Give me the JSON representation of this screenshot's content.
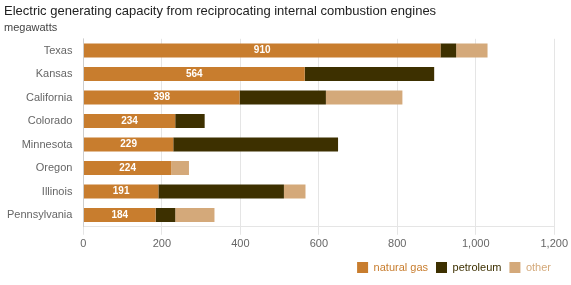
{
  "chart_data": {
    "type": "bar",
    "orientation": "horizontal",
    "stacked": true,
    "title": "Electric generating capacity from reciprocating internal combustion engines",
    "subtitle": "megawatts",
    "categories": [
      "Pennsylvania",
      "Illinois",
      "Oregon",
      "Minnesota",
      "Colorado",
      "California",
      "Kansas",
      "Texas"
    ],
    "series": [
      {
        "name": "natural gas",
        "color": "#c87d2e",
        "values": [
          184,
          191,
          224,
          229,
          234,
          398,
          564,
          910
        ],
        "data_labels": true
      },
      {
        "name": "petroleum",
        "color": "#3d3000",
        "values": [
          50,
          320,
          0,
          420,
          75,
          220,
          330,
          40
        ]
      },
      {
        "name": "other",
        "color": "#d4a97a",
        "values": [
          100,
          55,
          45,
          0,
          0,
          195,
          0,
          80
        ]
      }
    ],
    "xlim": [
      0,
      1200
    ],
    "xticks": [
      0,
      200,
      400,
      600,
      800,
      {
        "value": 1000,
        "label": "1,000"
      },
      {
        "value": 1200,
        "label": "1,200"
      }
    ],
    "grid": true,
    "legend": "lower right"
  }
}
